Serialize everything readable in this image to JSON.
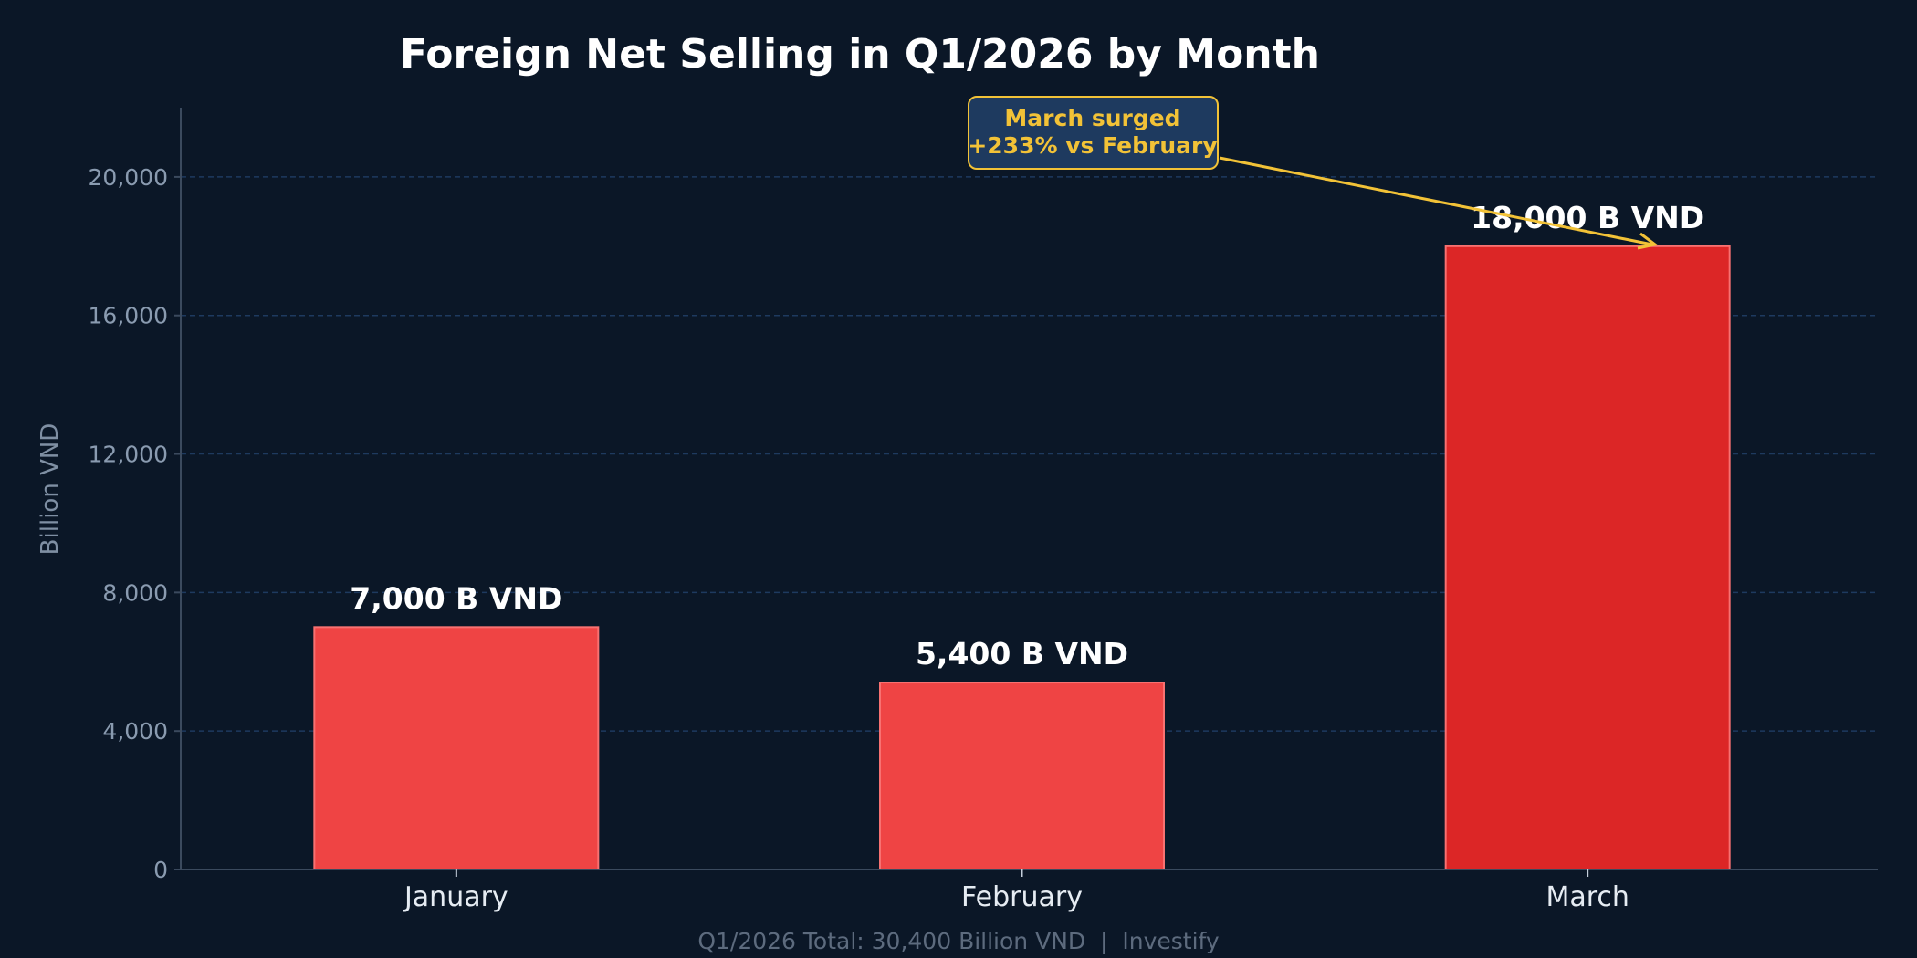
{
  "chart_data": {
    "type": "bar",
    "title": "Foreign Net Selling in Q1/2026 by Month",
    "xlabel": "",
    "ylabel": "Billion VND",
    "categories": [
      "January",
      "February",
      "March"
    ],
    "values": [
      7000,
      5400,
      18000
    ],
    "data_labels": [
      "7,000 B VND",
      "5,400 B VND",
      "18,000 B VND"
    ],
    "ylim": [
      0,
      22000
    ],
    "yticks": [
      0,
      4000,
      8000,
      12000,
      16000,
      20000
    ],
    "ytick_labels": [
      "0",
      "4,000",
      "8,000",
      "12,000",
      "16,000",
      "20,000"
    ],
    "grid": "horizontal dashed",
    "bar_colors": [
      "#ef4444",
      "#ef4444",
      "#dc2626"
    ],
    "annotation": {
      "lines": [
        "March surged",
        "+233% vs February"
      ],
      "target_category": "March",
      "color": "#f2c237",
      "box_color": "#1e3a5f"
    },
    "footer": "Q1/2026 Total: 30,400 Billion VND  |  Investify"
  },
  "colors": {
    "background": "#0b1727",
    "grid": "#1e3a5f",
    "axis": "#3b4a5e"
  }
}
